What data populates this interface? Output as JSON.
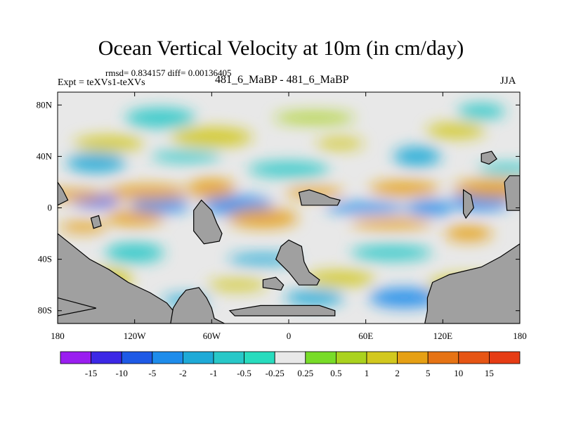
{
  "chart_data": {
    "type": "heatmap",
    "title": "Ocean Vertical Velocity at 10m (in cm/day)",
    "stats_text": "rmsd= 0.834157 diff= 0.00136405",
    "left_label": "Expt = teXVs1-teXVs",
    "center_label": "481_6_MaBP - 481_6_MaBP",
    "right_label": "JJA",
    "x_axis": {
      "range": [
        -180,
        180
      ],
      "ticks": [
        {
          "value": -180,
          "label": "180"
        },
        {
          "value": -120,
          "label": "120W"
        },
        {
          "value": -60,
          "label": "60W"
        },
        {
          "value": 0,
          "label": "0"
        },
        {
          "value": 60,
          "label": "60E"
        },
        {
          "value": 120,
          "label": "120E"
        },
        {
          "value": 180,
          "label": "180"
        }
      ]
    },
    "y_axis": {
      "range": [
        -90,
        90
      ],
      "ticks": [
        {
          "value": 80,
          "label": "80N"
        },
        {
          "value": 40,
          "label": "40N"
        },
        {
          "value": 0,
          "label": "0"
        },
        {
          "value": -40,
          "label": "40S"
        },
        {
          "value": -80,
          "label": "80S"
        }
      ]
    },
    "colorbar": {
      "levels": [
        "-15",
        "-10",
        "-5",
        "-2",
        "-1",
        "-0.5",
        "-0.25",
        "0.25",
        "0.5",
        "1",
        "2",
        "5",
        "10",
        "15"
      ],
      "colors": [
        "#9a1ef0",
        "#3c28e6",
        "#1e5ae6",
        "#1e8ceb",
        "#1eaad7",
        "#28c8c8",
        "#28dcbe",
        "#e8e8e8",
        "#78dc28",
        "#aad21e",
        "#d2c81e",
        "#e6a014",
        "#e67314",
        "#e65514",
        "#e63c14"
      ]
    },
    "land_color": "#a0a0a0",
    "neutral_color": "#e8e8e8",
    "fields": [
      {
        "lon": -150,
        "lat": 5,
        "value": -6
      },
      {
        "lon": -100,
        "lat": 2,
        "value": -5
      },
      {
        "lon": -40,
        "lat": 2,
        "value": -3
      },
      {
        "lon": 60,
        "lat": 0,
        "value": -4
      },
      {
        "lon": 110,
        "lat": 0,
        "value": -3
      },
      {
        "lon": 150,
        "lat": 5,
        "value": -5
      },
      {
        "lon": -170,
        "lat": 10,
        "value": 4
      },
      {
        "lon": -110,
        "lat": 12,
        "value": 3
      },
      {
        "lon": -60,
        "lat": 15,
        "value": 2
      },
      {
        "lon": 20,
        "lat": 12,
        "value": 3
      },
      {
        "lon": 90,
        "lat": 15,
        "value": 4
      },
      {
        "lon": 160,
        "lat": 15,
        "value": 3
      },
      {
        "lon": -160,
        "lat": -15,
        "value": 2
      },
      {
        "lon": -120,
        "lat": -8,
        "value": 3
      },
      {
        "lon": -20,
        "lat": -8,
        "value": 2
      },
      {
        "lon": 80,
        "lat": -12,
        "value": 3
      },
      {
        "lon": 140,
        "lat": -20,
        "value": 2
      },
      {
        "lon": -150,
        "lat": 35,
        "value": -1.5
      },
      {
        "lon": -80,
        "lat": 40,
        "value": -1
      },
      {
        "lon": 0,
        "lat": 30,
        "value": -1
      },
      {
        "lon": 100,
        "lat": 40,
        "value": -1.5
      },
      {
        "lon": 170,
        "lat": 30,
        "value": -1
      },
      {
        "lon": -140,
        "lat": 50,
        "value": 1.5
      },
      {
        "lon": -60,
        "lat": 55,
        "value": 1
      },
      {
        "lon": 40,
        "lat": 50,
        "value": 1.2
      },
      {
        "lon": 130,
        "lat": 60,
        "value": 1
      },
      {
        "lon": -100,
        "lat": 70,
        "value": -0.8
      },
      {
        "lon": 20,
        "lat": 70,
        "value": 0.8
      },
      {
        "lon": 150,
        "lat": 75,
        "value": -0.8
      },
      {
        "lon": -120,
        "lat": -35,
        "value": -1
      },
      {
        "lon": -20,
        "lat": -40,
        "value": -1.2
      },
      {
        "lon": 80,
        "lat": -35,
        "value": -1
      },
      {
        "lon": -140,
        "lat": -55,
        "value": 1.5
      },
      {
        "lon": -40,
        "lat": -60,
        "value": 1.2
      },
      {
        "lon": 40,
        "lat": -55,
        "value": 1
      },
      {
        "lon": 140,
        "lat": -60,
        "value": 1.3
      },
      {
        "lon": -80,
        "lat": -72,
        "value": -2
      },
      {
        "lon": 20,
        "lat": -70,
        "value": -1.5
      },
      {
        "lon": 90,
        "lat": -70,
        "value": -2.5
      },
      {
        "lon": -170,
        "lat": -75,
        "value": 1
      }
    ],
    "land_polygons": [
      [
        [
          -180,
          -20
        ],
        [
          -170,
          -28
        ],
        [
          -155,
          -40
        ],
        [
          -140,
          -48
        ],
        [
          -125,
          -58
        ],
        [
          -108,
          -66
        ],
        [
          -95,
          -74
        ],
        [
          -90,
          -80
        ],
        [
          -90,
          -90
        ],
        [
          -180,
          -90
        ]
      ],
      [
        [
          -92,
          -90
        ],
        [
          -90,
          -78
        ],
        [
          -85,
          -70
        ],
        [
          -80,
          -64
        ],
        [
          -70,
          -62
        ],
        [
          -64,
          -70
        ],
        [
          -60,
          -78
        ],
        [
          -58,
          -86
        ],
        [
          -50,
          -90
        ]
      ],
      [
        [
          106,
          -90
        ],
        [
          108,
          -80
        ],
        [
          108,
          -70
        ],
        [
          112,
          -58
        ],
        [
          125,
          -52
        ],
        [
          150,
          -46
        ],
        [
          165,
          -38
        ],
        [
          180,
          -28
        ],
        [
          180,
          -90
        ]
      ],
      [
        [
          170,
          -2
        ],
        [
          168,
          20
        ],
        [
          172,
          25
        ],
        [
          180,
          25
        ],
        [
          180,
          -2
        ]
      ],
      [
        [
          -180,
          2
        ],
        [
          -180,
          20
        ],
        [
          -176,
          14
        ],
        [
          -172,
          6
        ]
      ],
      [
        [
          -74,
          -2
        ],
        [
          -74,
          -18
        ],
        [
          -66,
          -28
        ],
        [
          -54,
          -26
        ],
        [
          -52,
          -20
        ],
        [
          -56,
          -12
        ],
        [
          -60,
          -2
        ],
        [
          -68,
          6
        ]
      ],
      [
        [
          -10,
          -40
        ],
        [
          -6,
          -30
        ],
        [
          0,
          -25
        ],
        [
          10,
          -30
        ],
        [
          12,
          -42
        ],
        [
          16,
          -50
        ],
        [
          24,
          -56
        ],
        [
          22,
          -60
        ],
        [
          8,
          -60
        ],
        [
          0,
          -50
        ]
      ],
      [
        [
          -20,
          -56
        ],
        [
          -10,
          -54
        ],
        [
          -4,
          -60
        ],
        [
          -6,
          -64
        ],
        [
          -20,
          -62
        ]
      ],
      [
        [
          -46,
          -80
        ],
        [
          -22,
          -76
        ],
        [
          24,
          -76
        ],
        [
          36,
          -80
        ],
        [
          36,
          -84
        ],
        [
          -42,
          -84
        ]
      ],
      [
        [
          -154,
          -8
        ],
        [
          -148,
          -6
        ],
        [
          -146,
          -14
        ],
        [
          -152,
          -16
        ]
      ],
      [
        [
          8,
          12
        ],
        [
          16,
          14
        ],
        [
          28,
          10
        ],
        [
          32,
          8
        ],
        [
          40,
          6
        ],
        [
          38,
          2
        ],
        [
          22,
          2
        ],
        [
          10,
          2
        ]
      ],
      [
        [
          136,
          14
        ],
        [
          142,
          10
        ],
        [
          144,
          0
        ],
        [
          138,
          -8
        ],
        [
          136,
          -4
        ]
      ],
      [
        [
          150,
          42
        ],
        [
          158,
          44
        ],
        [
          162,
          38
        ],
        [
          156,
          34
        ],
        [
          150,
          36
        ]
      ],
      [
        [
          -180,
          -70
        ],
        [
          -150,
          -78
        ],
        [
          -180,
          -84
        ]
      ]
    ]
  }
}
